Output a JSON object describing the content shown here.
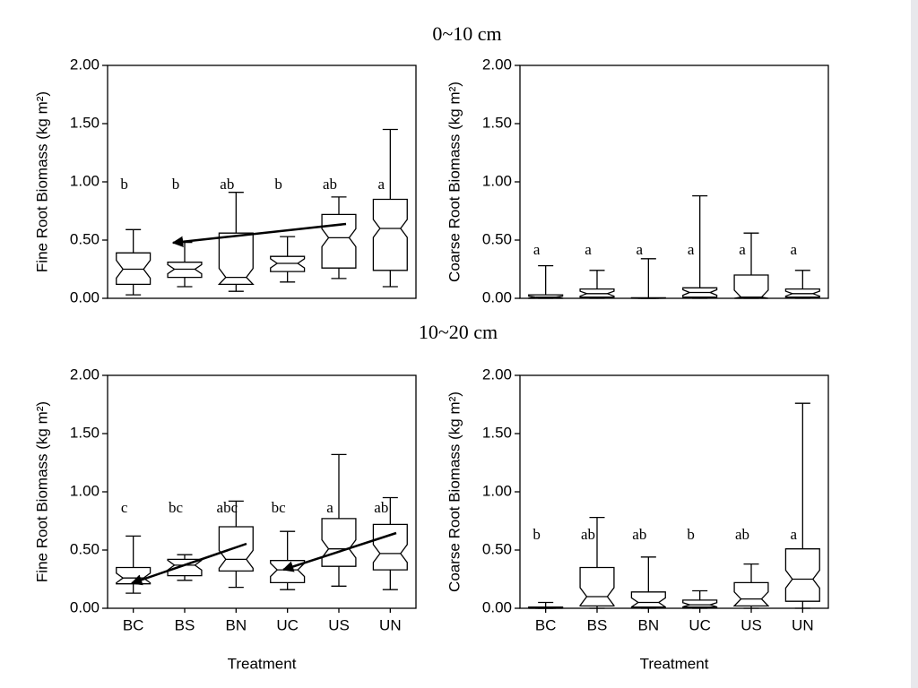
{
  "headings": [
    "0~10 cm",
    "10~20 cm"
  ],
  "chart_data": [
    {
      "type": "box",
      "ylabel": "Fine Root Biomass (kg m²)",
      "ylim": [
        0,
        2
      ],
      "yticks": [
        {
          "value": 0,
          "label": "0.00"
        },
        {
          "value": 0.5,
          "label": "0.50"
        },
        {
          "value": 1,
          "label": "1.00"
        },
        {
          "value": 1.5,
          "label": "1.50"
        },
        {
          "value": 2,
          "label": "2.00"
        }
      ],
      "boxes": [
        {
          "min": 0.03,
          "q1": 0.12,
          "median": 0.25,
          "q3": 0.39,
          "max": 0.59
        },
        {
          "min": 0.1,
          "q1": 0.18,
          "median": 0.25,
          "q3": 0.31,
          "max": 0.48
        },
        {
          "min": 0.06,
          "q1": 0.12,
          "median": 0.18,
          "q3": 0.56,
          "max": 0.91
        },
        {
          "min": 0.14,
          "q1": 0.23,
          "median": 0.3,
          "q3": 0.36,
          "max": 0.53
        },
        {
          "min": 0.17,
          "q1": 0.26,
          "median": 0.52,
          "q3": 0.72,
          "max": 0.87
        },
        {
          "min": 0.1,
          "q1": 0.24,
          "median": 0.6,
          "q3": 0.85,
          "max": 1.45
        }
      ],
      "letters": [
        "b",
        "b",
        "ab",
        "b",
        "ab",
        "a"
      ]
    },
    {
      "type": "box",
      "ylabel": "Coarse Root Biomass (kg m²)",
      "ylim": [
        0,
        2
      ],
      "yticks": [
        {
          "value": 0,
          "label": "0.00"
        },
        {
          "value": 0.5,
          "label": "0.50"
        },
        {
          "value": 1,
          "label": "1.00"
        },
        {
          "value": 1.5,
          "label": "1.50"
        },
        {
          "value": 2,
          "label": "2.00"
        }
      ],
      "boxes": [
        {
          "min": 0,
          "q1": 0,
          "median": 0.01,
          "q3": 0.03,
          "max": 0.28
        },
        {
          "min": 0,
          "q1": 0.01,
          "median": 0.04,
          "q3": 0.08,
          "max": 0.24
        },
        {
          "min": 0,
          "q1": 0,
          "median": 0,
          "q3": 0.005,
          "max": 0.34
        },
        {
          "min": 0,
          "q1": 0.01,
          "median": 0.05,
          "q3": 0.09,
          "max": 0.88
        },
        {
          "min": 0,
          "q1": 0,
          "median": 0.01,
          "q3": 0.2,
          "max": 0.56
        },
        {
          "min": 0,
          "q1": 0.01,
          "median": 0.04,
          "q3": 0.08,
          "max": 0.24
        }
      ],
      "letters": [
        "a",
        "a",
        "a",
        "a",
        "a",
        "a"
      ]
    },
    {
      "type": "box",
      "ylabel": "Fine Root Biomass (kg m²)",
      "xlabel": "Treatment",
      "categories": [
        "BC",
        "BS",
        "BN",
        "UC",
        "US",
        "UN"
      ],
      "ylim": [
        0,
        2
      ],
      "yticks": [
        {
          "value": 0,
          "label": "0.00"
        },
        {
          "value": 0.5,
          "label": "0.50"
        },
        {
          "value": 1,
          "label": "1.00"
        },
        {
          "value": 1.5,
          "label": "1.50"
        },
        {
          "value": 2,
          "label": "2.00"
        }
      ],
      "boxes": [
        {
          "min": 0.13,
          "q1": 0.21,
          "median": 0.26,
          "q3": 0.35,
          "max": 0.62
        },
        {
          "min": 0.24,
          "q1": 0.28,
          "median": 0.37,
          "q3": 0.42,
          "max": 0.46
        },
        {
          "min": 0.18,
          "q1": 0.32,
          "median": 0.42,
          "q3": 0.7,
          "max": 0.92
        },
        {
          "min": 0.16,
          "q1": 0.22,
          "median": 0.33,
          "q3": 0.41,
          "max": 0.66
        },
        {
          "min": 0.19,
          "q1": 0.36,
          "median": 0.51,
          "q3": 0.77,
          "max": 1.32
        },
        {
          "min": 0.16,
          "q1": 0.33,
          "median": 0.47,
          "q3": 0.72,
          "max": 0.95
        }
      ],
      "letters": [
        "c",
        "bc",
        "abc",
        "bc",
        "a",
        "ab"
      ]
    },
    {
      "type": "box",
      "ylabel": "Coarse Root Biomass (kg m²)",
      "xlabel": "Treatment",
      "categories": [
        "BC",
        "BS",
        "BN",
        "UC",
        "US",
        "UN"
      ],
      "ylim": [
        0,
        2
      ],
      "yticks": [
        {
          "value": 0,
          "label": "0.00"
        },
        {
          "value": 0.5,
          "label": "0.50"
        },
        {
          "value": 1,
          "label": "1.00"
        },
        {
          "value": 1.5,
          "label": "1.50"
        },
        {
          "value": 2,
          "label": "2.00"
        }
      ],
      "boxes": [
        {
          "min": 0,
          "q1": 0,
          "median": 0,
          "q3": 0.01,
          "max": 0.05
        },
        {
          "min": 0,
          "q1": 0.02,
          "median": 0.1,
          "q3": 0.35,
          "max": 0.78
        },
        {
          "min": 0,
          "q1": 0.01,
          "median": 0.05,
          "q3": 0.14,
          "max": 0.44
        },
        {
          "min": 0,
          "q1": 0.01,
          "median": 0.03,
          "q3": 0.07,
          "max": 0.15
        },
        {
          "min": 0,
          "q1": 0.02,
          "median": 0.08,
          "q3": 0.22,
          "max": 0.38
        },
        {
          "min": 0,
          "q1": 0.06,
          "median": 0.25,
          "q3": 0.51,
          "max": 1.76
        }
      ],
      "letters": [
        "b",
        "ab",
        "ab",
        "b",
        "ab",
        "a"
      ]
    }
  ]
}
